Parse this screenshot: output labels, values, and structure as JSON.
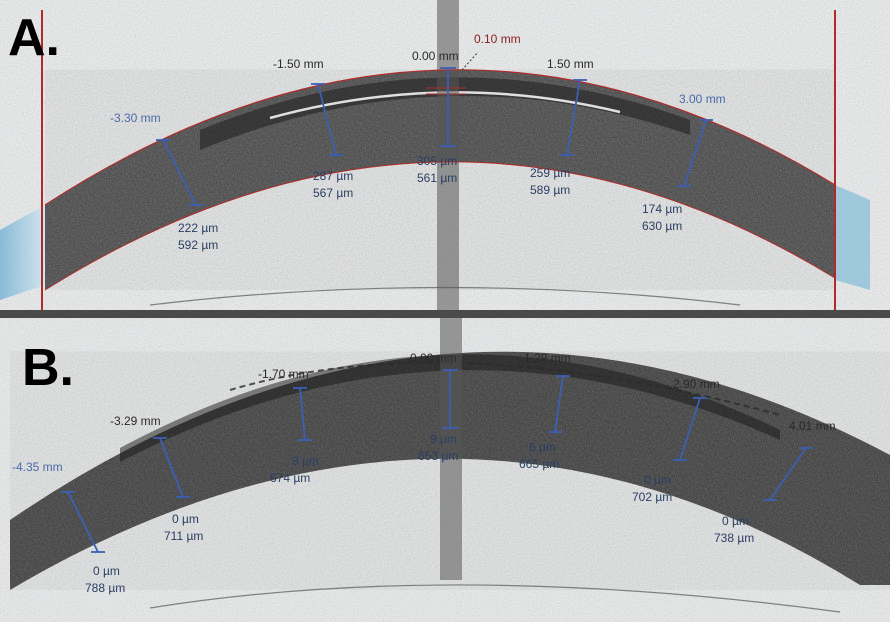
{
  "panel_a": {
    "letter": "A.",
    "offset_label": "0.10 mm",
    "positions": [
      "-3.30 mm",
      "-1.50 mm",
      "0.00 mm",
      "1.50 mm",
      "3.00 mm"
    ],
    "measurements": [
      {
        "thin": "222 µm",
        "total": "592 µm"
      },
      {
        "thin": "287 µm",
        "total": "567 µm"
      },
      {
        "thin": "305 µm",
        "total": "561 µm"
      },
      {
        "thin": "259 µm",
        "total": "589 µm"
      },
      {
        "thin": "174 µm",
        "total": "630 µm"
      }
    ]
  },
  "panel_b": {
    "letter": "B.",
    "positions": [
      "-4.35 mm",
      "-3.29 mm",
      "-1.70 mm",
      "0.00 mm",
      "1.29 mm",
      "2.90 mm",
      "4.01 mm"
    ],
    "measurements": [
      {
        "thin": "0 µm",
        "total": "788 µm"
      },
      {
        "thin": "0 µm",
        "total": "711 µm"
      },
      {
        "thin": "9 µm",
        "total": "674 µm"
      },
      {
        "thin": "9 µm",
        "total": "653 µm"
      },
      {
        "thin": "6 µm",
        "total": "665 µm"
      },
      {
        "thin": "0 µm",
        "total": "702 µm"
      },
      {
        "thin": "0 µm",
        "total": "738 µm"
      }
    ]
  },
  "colors": {
    "measure_line": "#3c5fb4",
    "boundary_line": "#b02a2a",
    "offset_label": "#8a2020",
    "mm_label_a": "#4a6aa8",
    "mm_label_b": "#2a2a2a",
    "divider": "#4a4a4a"
  }
}
